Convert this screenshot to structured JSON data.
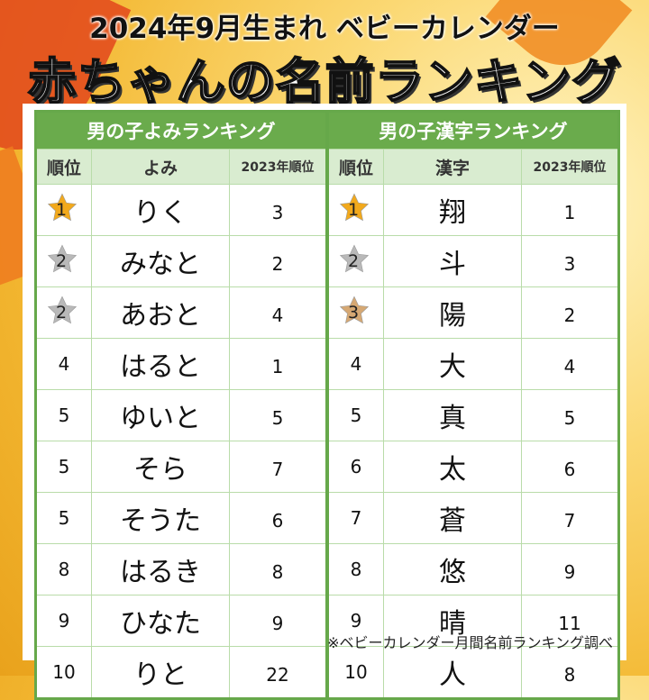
{
  "title": {
    "line1": "2024年9月生まれ ベビーカレンダー",
    "line2": "赤ちゃんの名前ランキング"
  },
  "colors": {
    "header_green": "#6aab4c",
    "subheader_green": "#d9ecd0",
    "gold": "#f2a91c",
    "silver": "#b9b9b9",
    "bronze": "#d6a873"
  },
  "left_table": {
    "title": "男の子よみランキング",
    "columns": [
      "順位",
      "よみ",
      "2023年順位"
    ],
    "rows": [
      {
        "rank": "1",
        "name": "りく",
        "prev": "3",
        "medal": "gold"
      },
      {
        "rank": "2",
        "name": "みなと",
        "prev": "2",
        "medal": "silver"
      },
      {
        "rank": "2",
        "name": "あおと",
        "prev": "4",
        "medal": "silver"
      },
      {
        "rank": "4",
        "name": "はると",
        "prev": "1"
      },
      {
        "rank": "5",
        "name": "ゆいと",
        "prev": "5"
      },
      {
        "rank": "5",
        "name": "そら",
        "prev": "7"
      },
      {
        "rank": "5",
        "name": "そうた",
        "prev": "6"
      },
      {
        "rank": "8",
        "name": "はるき",
        "prev": "8"
      },
      {
        "rank": "9",
        "name": "ひなた",
        "prev": "9"
      },
      {
        "rank": "10",
        "name": "りと",
        "prev": "22"
      }
    ]
  },
  "right_table": {
    "title": "男の子漢字ランキング",
    "columns": [
      "順位",
      "漢字",
      "2023年順位"
    ],
    "rows": [
      {
        "rank": "1",
        "name": "翔",
        "prev": "1",
        "medal": "gold"
      },
      {
        "rank": "2",
        "name": "斗",
        "prev": "3",
        "medal": "silver"
      },
      {
        "rank": "3",
        "name": "陽",
        "prev": "2",
        "medal": "bronze"
      },
      {
        "rank": "4",
        "name": "大",
        "prev": "4"
      },
      {
        "rank": "5",
        "name": "真",
        "prev": "5"
      },
      {
        "rank": "6",
        "name": "太",
        "prev": "6"
      },
      {
        "rank": "7",
        "name": "蒼",
        "prev": "7"
      },
      {
        "rank": "8",
        "name": "悠",
        "prev": "9"
      },
      {
        "rank": "9",
        "name": "晴",
        "prev": "11"
      },
      {
        "rank": "10",
        "name": "人",
        "prev": "8"
      }
    ]
  },
  "footer": "※ベビーカレンダー月間名前ランキング調べ"
}
